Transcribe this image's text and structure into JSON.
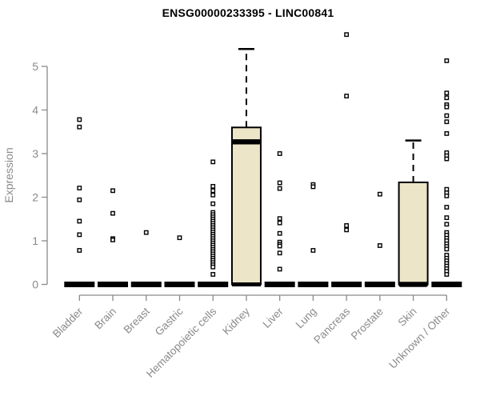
{
  "title": "ENSG00000233395 - LINC00841",
  "chart_data": {
    "type": "boxplot",
    "title": "ENSG00000233395 - LINC00841",
    "xlabel": "",
    "ylabel": "Expression",
    "ylim": [
      0,
      5.9
    ],
    "yticks": [
      0,
      1,
      2,
      3,
      4,
      5
    ],
    "grid": false,
    "legend": "none",
    "categories": [
      "Bladder",
      "Brain",
      "Breast",
      "Gastric",
      "Hematopoietic cells",
      "Kidney",
      "Liver",
      "Lung",
      "Pancreas",
      "Prostate",
      "Skin",
      "Unknown / Other"
    ],
    "series": [
      {
        "category": "Bladder",
        "q1": 0,
        "median": 0,
        "q3": 0,
        "whisker_low": 0,
        "whisker_high": 0,
        "outliers": [
          3.78,
          3.61,
          2.21,
          1.94,
          1.45,
          1.14,
          0.78
        ]
      },
      {
        "category": "Brain",
        "q1": 0,
        "median": 0,
        "q3": 0,
        "whisker_low": 0,
        "whisker_high": 0,
        "outliers": [
          2.15,
          1.63,
          1.05,
          1.02
        ]
      },
      {
        "category": "Breast",
        "q1": 0,
        "median": 0,
        "q3": 0,
        "whisker_low": 0,
        "whisker_high": 0,
        "outliers": [
          1.19
        ]
      },
      {
        "category": "Gastric",
        "q1": 0,
        "median": 0,
        "q3": 0,
        "whisker_low": 0,
        "whisker_high": 0,
        "outliers": [
          1.07
        ]
      },
      {
        "category": "Hematopoietic cells",
        "q1": 0,
        "median": 0,
        "q3": 0,
        "whisker_low": 0,
        "whisker_high": 0,
        "outliers": [
          2.81,
          2.25,
          2.15,
          2.05,
          1.85,
          1.65,
          1.6,
          1.55,
          1.5,
          1.45,
          1.4,
          1.35,
          1.3,
          1.25,
          1.2,
          1.15,
          1.1,
          1.05,
          1.0,
          0.95,
          0.9,
          0.85,
          0.8,
          0.75,
          0.7,
          0.65,
          0.6,
          0.55,
          0.5,
          0.45,
          0.4,
          0.23
        ]
      },
      {
        "category": "Kidney",
        "q1": 0,
        "median": 3.27,
        "q3": 3.6,
        "whisker_low": 0,
        "whisker_high": 5.4,
        "outliers": []
      },
      {
        "category": "Liver",
        "q1": 0,
        "median": 0,
        "q3": 0,
        "whisker_low": 0,
        "whisker_high": 0,
        "outliers": [
          3.0,
          2.33,
          2.2,
          1.51,
          1.41,
          1.17,
          0.97,
          0.92,
          0.88,
          0.72,
          0.35
        ]
      },
      {
        "category": "Lung",
        "q1": 0,
        "median": 0,
        "q3": 0,
        "whisker_low": 0,
        "whisker_high": 0,
        "outliers": [
          2.29,
          2.24,
          0.78
        ]
      },
      {
        "category": "Pancreas",
        "q1": 0,
        "median": 0,
        "q3": 0,
        "whisker_low": 0,
        "whisker_high": 0,
        "outliers": [
          5.73,
          4.32,
          1.35,
          1.25
        ]
      },
      {
        "category": "Prostate",
        "q1": 0,
        "median": 0,
        "q3": 0,
        "whisker_low": 0,
        "whisker_high": 0,
        "outliers": [
          2.07,
          0.89
        ]
      },
      {
        "category": "Skin",
        "q1": 0,
        "median": 0,
        "q3": 2.34,
        "whisker_low": 0,
        "whisker_high": 3.3,
        "outliers": []
      },
      {
        "category": "Unknown / Other",
        "q1": 0,
        "median": 0,
        "q3": 0,
        "whisker_low": 0,
        "whisker_high": 0,
        "outliers": [
          5.13,
          4.39,
          4.28,
          4.12,
          4.07,
          3.87,
          3.73,
          3.46,
          3.02,
          2.95,
          2.88,
          2.18,
          2.1,
          2.03,
          1.77,
          1.53,
          1.38,
          1.19,
          1.13,
          1.06,
          1.0,
          0.93,
          0.87,
          0.81,
          0.67,
          0.6,
          0.54,
          0.48,
          0.42,
          0.36,
          0.3,
          0.23
        ]
      }
    ],
    "colors": {
      "box_fill": "#ECE5C8",
      "box_border": "#000000",
      "median": "#000000",
      "axis": "#8A8A8A",
      "axis_text": "#8A8A8A",
      "title_text": "#000000",
      "outlier_stroke": "#000000",
      "outlier_fill": "#FFFFFF",
      "background": "#FFFFFF"
    }
  }
}
